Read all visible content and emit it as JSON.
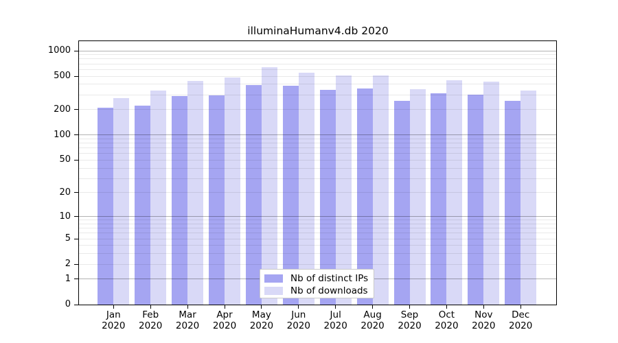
{
  "title": "illuminaHumanv4.db 2020",
  "chart_data": {
    "type": "bar",
    "title": "illuminaHumanv4.db 2020",
    "y_scale": "log1p",
    "grid": true,
    "legend_position": "inside-bottom-center",
    "ylim": [
      0,
      1000
    ],
    "y_ticks": [
      0,
      1,
      2,
      5,
      10,
      20,
      50,
      100,
      200,
      500,
      1000
    ],
    "categories": [
      "Jan 2020",
      "Feb 2020",
      "Mar 2020",
      "Apr 2020",
      "May 2020",
      "Jun 2020",
      "Jul 2020",
      "Aug 2020",
      "Sep 2020",
      "Oct 2020",
      "Nov 2020",
      "Dec 2020"
    ],
    "series": [
      {
        "name": "Nb of distinct IPs",
        "color": "#a5a5f2",
        "values": [
          213,
          224,
          290,
          296,
          391,
          384,
          347,
          360,
          255,
          315,
          301,
          255
        ]
      },
      {
        "name": "Nb of downloads",
        "color": "#d9d9f7",
        "values": [
          277,
          340,
          437,
          480,
          636,
          549,
          514,
          509,
          354,
          450,
          429,
          341
        ]
      }
    ]
  },
  "colors": {
    "axis": "#000000",
    "grid_major": "#b3b3b3",
    "grid_minor": "#e8e8e8",
    "background": "#ffffff"
  }
}
